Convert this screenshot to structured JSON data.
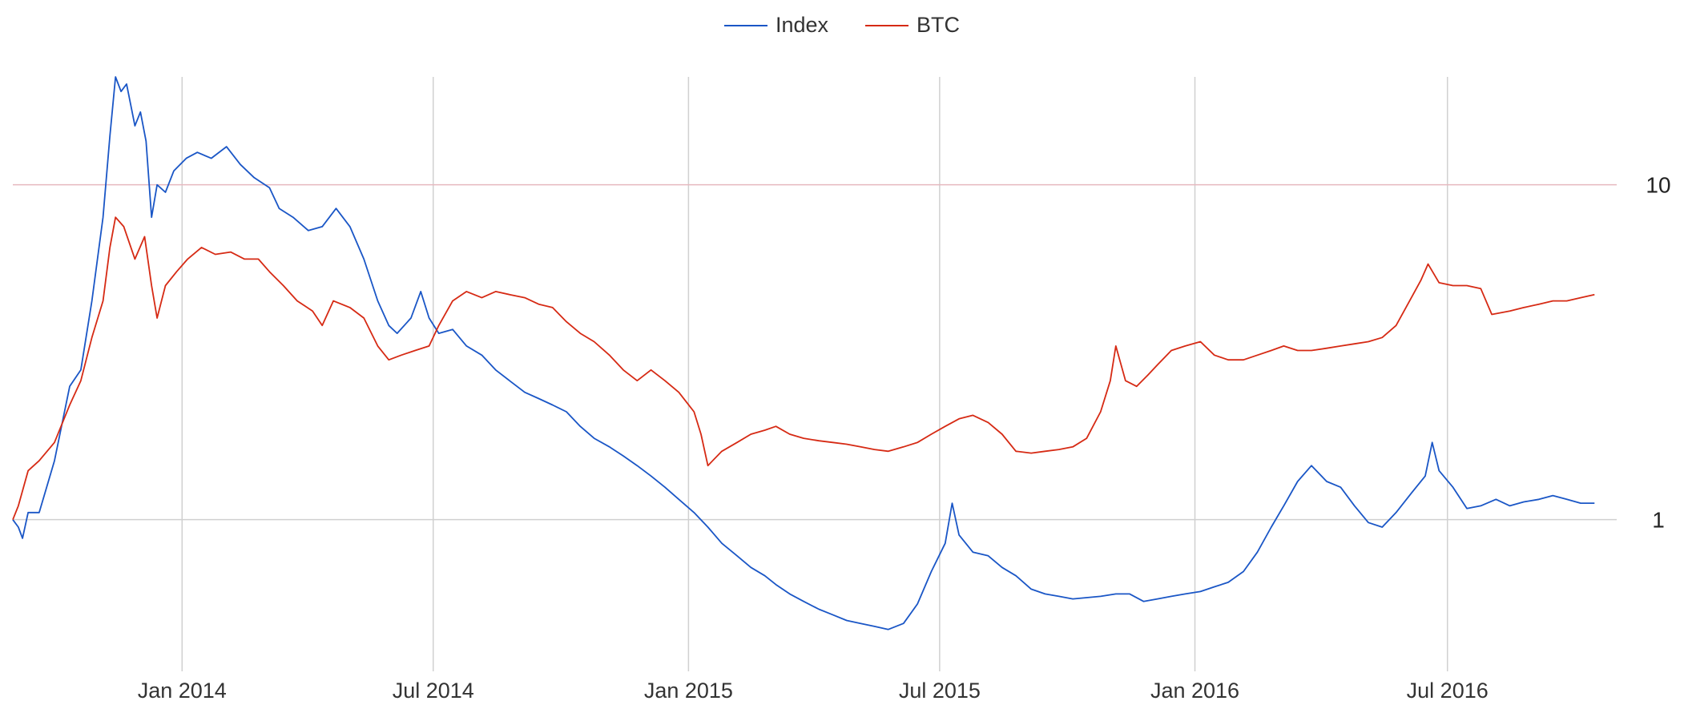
{
  "chart_data": {
    "type": "line",
    "title": "",
    "xlabel": "",
    "ylabel": "",
    "y_scale": "log",
    "ylim": [
      0.4,
      21
    ],
    "xlim": [
      "2013-09-01",
      "2016-10-31"
    ],
    "grid": true,
    "legend_position": "top-center",
    "x_ticks": [
      {
        "date": "2014-01-01",
        "label": "Jan 2014"
      },
      {
        "date": "2014-07-01",
        "label": "Jul 2014"
      },
      {
        "date": "2015-01-01",
        "label": "Jan 2015"
      },
      {
        "date": "2015-07-01",
        "label": "Jul 2015"
      },
      {
        "date": "2016-01-01",
        "label": "Jan 2016"
      },
      {
        "date": "2016-07-01",
        "label": "Jul 2016"
      }
    ],
    "y_ticks": [
      {
        "value": 10,
        "label": "10"
      },
      {
        "value": 1,
        "label": "1"
      }
    ],
    "colors": {
      "Index": "#1a56c6",
      "BTC": "#d62a14",
      "grid": "#d0d0d0",
      "grid10": "#e6b8bf"
    },
    "series": [
      {
        "name": "Index",
        "color": "#1a56c6",
        "points": [
          [
            "2013-09-01",
            1.0
          ],
          [
            "2013-09-05",
            0.95
          ],
          [
            "2013-09-08",
            0.88
          ],
          [
            "2013-09-12",
            1.05
          ],
          [
            "2013-09-20",
            1.05
          ],
          [
            "2013-10-01",
            1.5
          ],
          [
            "2013-10-12",
            2.5
          ],
          [
            "2013-10-20",
            2.8
          ],
          [
            "2013-10-28",
            4.5
          ],
          [
            "2013-11-05",
            8.0
          ],
          [
            "2013-11-10",
            14.0
          ],
          [
            "2013-11-14",
            21.0
          ],
          [
            "2013-11-18",
            19.0
          ],
          [
            "2013-11-22",
            20.0
          ],
          [
            "2013-11-28",
            15.0
          ],
          [
            "2013-12-02",
            16.5
          ],
          [
            "2013-12-06",
            13.5
          ],
          [
            "2013-12-10",
            8.0
          ],
          [
            "2013-12-14",
            10.0
          ],
          [
            "2013-12-20",
            9.5
          ],
          [
            "2013-12-26",
            11.0
          ],
          [
            "2014-01-04",
            12.0
          ],
          [
            "2014-01-12",
            12.5
          ],
          [
            "2014-01-22",
            12.0
          ],
          [
            "2014-02-02",
            13.0
          ],
          [
            "2014-02-12",
            11.5
          ],
          [
            "2014-02-22",
            10.5
          ],
          [
            "2014-03-05",
            9.8
          ],
          [
            "2014-03-12",
            8.5
          ],
          [
            "2014-03-22",
            8.0
          ],
          [
            "2014-04-02",
            7.3
          ],
          [
            "2014-04-12",
            7.5
          ],
          [
            "2014-04-22",
            8.5
          ],
          [
            "2014-05-02",
            7.5
          ],
          [
            "2014-05-12",
            6.0
          ],
          [
            "2014-05-22",
            4.5
          ],
          [
            "2014-05-30",
            3.8
          ],
          [
            "2014-06-05",
            3.6
          ],
          [
            "2014-06-15",
            4.0
          ],
          [
            "2014-06-22",
            4.8
          ],
          [
            "2014-06-28",
            4.0
          ],
          [
            "2014-07-05",
            3.6
          ],
          [
            "2014-07-15",
            3.7
          ],
          [
            "2014-07-25",
            3.3
          ],
          [
            "2014-08-05",
            3.1
          ],
          [
            "2014-08-15",
            2.8
          ],
          [
            "2014-08-25",
            2.6
          ],
          [
            "2014-09-05",
            2.4
          ],
          [
            "2014-09-15",
            2.3
          ],
          [
            "2014-09-25",
            2.2
          ],
          [
            "2014-10-05",
            2.1
          ],
          [
            "2014-10-15",
            1.9
          ],
          [
            "2014-10-25",
            1.75
          ],
          [
            "2014-11-05",
            1.65
          ],
          [
            "2014-11-15",
            1.55
          ],
          [
            "2014-11-25",
            1.45
          ],
          [
            "2014-12-05",
            1.35
          ],
          [
            "2014-12-15",
            1.25
          ],
          [
            "2014-12-25",
            1.15
          ],
          [
            "2015-01-05",
            1.05
          ],
          [
            "2015-01-15",
            0.95
          ],
          [
            "2015-01-25",
            0.85
          ],
          [
            "2015-02-05",
            0.78
          ],
          [
            "2015-02-15",
            0.72
          ],
          [
            "2015-02-25",
            0.68
          ],
          [
            "2015-03-05",
            0.64
          ],
          [
            "2015-03-15",
            0.6
          ],
          [
            "2015-03-25",
            0.57
          ],
          [
            "2015-04-05",
            0.54
          ],
          [
            "2015-04-15",
            0.52
          ],
          [
            "2015-04-25",
            0.5
          ],
          [
            "2015-05-05",
            0.49
          ],
          [
            "2015-05-15",
            0.48
          ],
          [
            "2015-05-25",
            0.47
          ],
          [
            "2015-06-05",
            0.49
          ],
          [
            "2015-06-15",
            0.56
          ],
          [
            "2015-06-25",
            0.7
          ],
          [
            "2015-07-05",
            0.85
          ],
          [
            "2015-07-10",
            1.12
          ],
          [
            "2015-07-15",
            0.9
          ],
          [
            "2015-07-25",
            0.8
          ],
          [
            "2015-08-05",
            0.78
          ],
          [
            "2015-08-15",
            0.72
          ],
          [
            "2015-08-25",
            0.68
          ],
          [
            "2015-09-05",
            0.62
          ],
          [
            "2015-09-15",
            0.6
          ],
          [
            "2015-09-25",
            0.59
          ],
          [
            "2015-10-05",
            0.58
          ],
          [
            "2015-10-15",
            0.585
          ],
          [
            "2015-10-25",
            0.59
          ],
          [
            "2015-11-05",
            0.6
          ],
          [
            "2015-11-15",
            0.6
          ],
          [
            "2015-11-25",
            0.57
          ],
          [
            "2015-12-05",
            0.58
          ],
          [
            "2015-12-15",
            0.59
          ],
          [
            "2015-12-25",
            0.6
          ],
          [
            "2016-01-05",
            0.61
          ],
          [
            "2016-01-15",
            0.63
          ],
          [
            "2016-01-25",
            0.65
          ],
          [
            "2016-02-05",
            0.7
          ],
          [
            "2016-02-15",
            0.8
          ],
          [
            "2016-02-25",
            0.95
          ],
          [
            "2016-03-05",
            1.1
          ],
          [
            "2016-03-15",
            1.3
          ],
          [
            "2016-03-25",
            1.45
          ],
          [
            "2016-04-05",
            1.3
          ],
          [
            "2016-04-15",
            1.25
          ],
          [
            "2016-04-25",
            1.1
          ],
          [
            "2016-05-05",
            0.98
          ],
          [
            "2016-05-15",
            0.95
          ],
          [
            "2016-05-25",
            1.05
          ],
          [
            "2016-06-05",
            1.2
          ],
          [
            "2016-06-15",
            1.35
          ],
          [
            "2016-06-20",
            1.7
          ],
          [
            "2016-06-25",
            1.4
          ],
          [
            "2016-07-05",
            1.25
          ],
          [
            "2016-07-15",
            1.08
          ],
          [
            "2016-07-25",
            1.1
          ],
          [
            "2016-08-05",
            1.15
          ],
          [
            "2016-08-15",
            1.1
          ],
          [
            "2016-08-25",
            1.13
          ],
          [
            "2016-09-05",
            1.15
          ],
          [
            "2016-09-15",
            1.18
          ],
          [
            "2016-09-25",
            1.15
          ],
          [
            "2016-10-05",
            1.12
          ],
          [
            "2016-10-15",
            1.12
          ]
        ]
      },
      {
        "name": "BTC",
        "color": "#d62a14",
        "points": [
          [
            "2013-09-01",
            1.0
          ],
          [
            "2013-09-05",
            1.1
          ],
          [
            "2013-09-12",
            1.4
          ],
          [
            "2013-09-20",
            1.5
          ],
          [
            "2013-10-01",
            1.7
          ],
          [
            "2013-10-12",
            2.2
          ],
          [
            "2013-10-20",
            2.6
          ],
          [
            "2013-10-28",
            3.5
          ],
          [
            "2013-11-05",
            4.5
          ],
          [
            "2013-11-10",
            6.5
          ],
          [
            "2013-11-14",
            8.0
          ],
          [
            "2013-11-20",
            7.5
          ],
          [
            "2013-11-28",
            6.0
          ],
          [
            "2013-12-05",
            7.0
          ],
          [
            "2013-12-10",
            5.0
          ],
          [
            "2013-12-14",
            4.0
          ],
          [
            "2013-12-20",
            5.0
          ],
          [
            "2013-12-28",
            5.5
          ],
          [
            "2014-01-05",
            6.0
          ],
          [
            "2014-01-15",
            6.5
          ],
          [
            "2014-01-25",
            6.2
          ],
          [
            "2014-02-05",
            6.3
          ],
          [
            "2014-02-15",
            6.0
          ],
          [
            "2014-02-25",
            6.0
          ],
          [
            "2014-03-05",
            5.5
          ],
          [
            "2014-03-15",
            5.0
          ],
          [
            "2014-03-25",
            4.5
          ],
          [
            "2014-04-05",
            4.2
          ],
          [
            "2014-04-12",
            3.8
          ],
          [
            "2014-04-20",
            4.5
          ],
          [
            "2014-05-02",
            4.3
          ],
          [
            "2014-05-12",
            4.0
          ],
          [
            "2014-05-22",
            3.3
          ],
          [
            "2014-05-30",
            3.0
          ],
          [
            "2014-06-08",
            3.1
          ],
          [
            "2014-06-18",
            3.2
          ],
          [
            "2014-06-28",
            3.3
          ],
          [
            "2014-07-05",
            3.8
          ],
          [
            "2014-07-15",
            4.5
          ],
          [
            "2014-07-25",
            4.8
          ],
          [
            "2014-08-05",
            4.6
          ],
          [
            "2014-08-15",
            4.8
          ],
          [
            "2014-08-25",
            4.7
          ],
          [
            "2014-09-05",
            4.6
          ],
          [
            "2014-09-15",
            4.4
          ],
          [
            "2014-09-25",
            4.3
          ],
          [
            "2014-10-05",
            3.9
          ],
          [
            "2014-10-15",
            3.6
          ],
          [
            "2014-10-25",
            3.4
          ],
          [
            "2014-11-05",
            3.1
          ],
          [
            "2014-11-15",
            2.8
          ],
          [
            "2014-11-25",
            2.6
          ],
          [
            "2014-12-05",
            2.8
          ],
          [
            "2014-12-15",
            2.6
          ],
          [
            "2014-12-25",
            2.4
          ],
          [
            "2015-01-05",
            2.1
          ],
          [
            "2015-01-10",
            1.8
          ],
          [
            "2015-01-15",
            1.45
          ],
          [
            "2015-01-25",
            1.6
          ],
          [
            "2015-02-05",
            1.7
          ],
          [
            "2015-02-15",
            1.8
          ],
          [
            "2015-02-25",
            1.85
          ],
          [
            "2015-03-05",
            1.9
          ],
          [
            "2015-03-15",
            1.8
          ],
          [
            "2015-03-25",
            1.75
          ],
          [
            "2015-04-05",
            1.72
          ],
          [
            "2015-04-15",
            1.7
          ],
          [
            "2015-04-25",
            1.68
          ],
          [
            "2015-05-05",
            1.65
          ],
          [
            "2015-05-15",
            1.62
          ],
          [
            "2015-05-25",
            1.6
          ],
          [
            "2015-06-05",
            1.65
          ],
          [
            "2015-06-15",
            1.7
          ],
          [
            "2015-06-25",
            1.8
          ],
          [
            "2015-07-05",
            1.9
          ],
          [
            "2015-07-15",
            2.0
          ],
          [
            "2015-07-25",
            2.05
          ],
          [
            "2015-08-05",
            1.95
          ],
          [
            "2015-08-15",
            1.8
          ],
          [
            "2015-08-25",
            1.6
          ],
          [
            "2015-09-05",
            1.58
          ],
          [
            "2015-09-15",
            1.6
          ],
          [
            "2015-09-25",
            1.62
          ],
          [
            "2015-10-05",
            1.65
          ],
          [
            "2015-10-15",
            1.75
          ],
          [
            "2015-10-25",
            2.1
          ],
          [
            "2015-11-01",
            2.6
          ],
          [
            "2015-11-05",
            3.3
          ],
          [
            "2015-11-12",
            2.6
          ],
          [
            "2015-11-20",
            2.5
          ],
          [
            "2015-11-28",
            2.7
          ],
          [
            "2015-12-05",
            2.9
          ],
          [
            "2015-12-15",
            3.2
          ],
          [
            "2015-12-25",
            3.3
          ],
          [
            "2016-01-05",
            3.4
          ],
          [
            "2016-01-15",
            3.1
          ],
          [
            "2016-01-25",
            3.0
          ],
          [
            "2016-02-05",
            3.0
          ],
          [
            "2016-02-15",
            3.1
          ],
          [
            "2016-02-25",
            3.2
          ],
          [
            "2016-03-05",
            3.3
          ],
          [
            "2016-03-15",
            3.2
          ],
          [
            "2016-03-25",
            3.2
          ],
          [
            "2016-04-05",
            3.25
          ],
          [
            "2016-04-15",
            3.3
          ],
          [
            "2016-04-25",
            3.35
          ],
          [
            "2016-05-05",
            3.4
          ],
          [
            "2016-05-15",
            3.5
          ],
          [
            "2016-05-25",
            3.8
          ],
          [
            "2016-06-05",
            4.6
          ],
          [
            "2016-06-12",
            5.2
          ],
          [
            "2016-06-17",
            5.8
          ],
          [
            "2016-06-25",
            5.1
          ],
          [
            "2016-07-05",
            5.0
          ],
          [
            "2016-07-15",
            5.0
          ],
          [
            "2016-07-25",
            4.9
          ],
          [
            "2016-08-02",
            4.1
          ],
          [
            "2016-08-15",
            4.2
          ],
          [
            "2016-08-25",
            4.3
          ],
          [
            "2016-09-05",
            4.4
          ],
          [
            "2016-09-15",
            4.5
          ],
          [
            "2016-09-25",
            4.5
          ],
          [
            "2016-10-05",
            4.6
          ],
          [
            "2016-10-15",
            4.7
          ]
        ]
      }
    ]
  }
}
